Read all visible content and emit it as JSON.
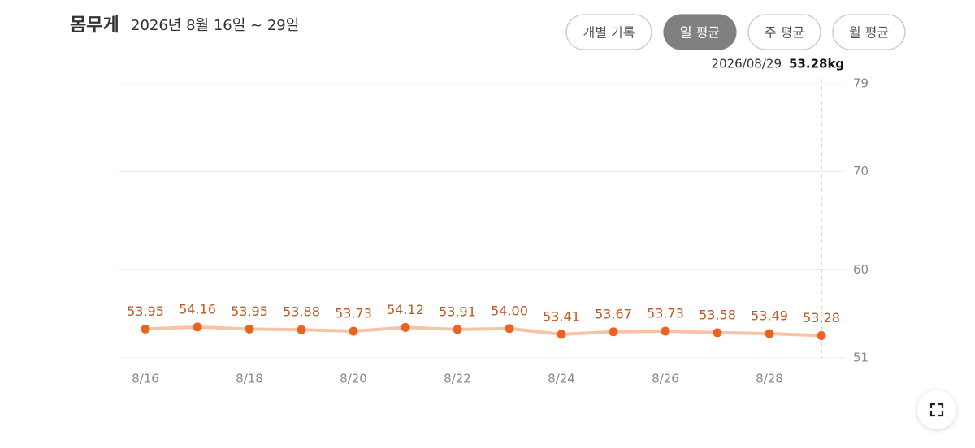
{
  "header": {
    "title": "몸무게",
    "subtitle": "2026년 8월 16일 ~ 29일"
  },
  "buttons": [
    "개별 기록",
    "일 평균",
    "주 평균",
    "월 평균"
  ],
  "active_button": 1,
  "tooltip": {
    "date": "2026/08/29",
    "value": "53.28kg"
  },
  "chart_data": {
    "type": "line",
    "categories": [
      "8/16",
      null,
      "8/18",
      null,
      "8/20",
      null,
      "8/22",
      null,
      "8/24",
      null,
      "8/26",
      null,
      "8/28",
      null
    ],
    "values": [
      53.95,
      54.16,
      53.95,
      53.88,
      53.73,
      54.12,
      53.91,
      54.0,
      53.41,
      53.67,
      53.73,
      53.58,
      53.49,
      53.28
    ],
    "value_labels": [
      "53.95",
      "54.16",
      "53.95",
      "53.88",
      "53.73",
      "54.12",
      "53.91",
      "54.00",
      "53.41",
      "53.67",
      "53.73",
      "53.58",
      "53.49",
      "53.28"
    ],
    "line_color": "#f8c3a4",
    "point_color": "#ea6420",
    "label_color": "#bf5a26",
    "ylim": [
      51,
      79
    ],
    "yticks": [
      51,
      60,
      70,
      79
    ],
    "grid": true,
    "highlight_index": 13
  }
}
